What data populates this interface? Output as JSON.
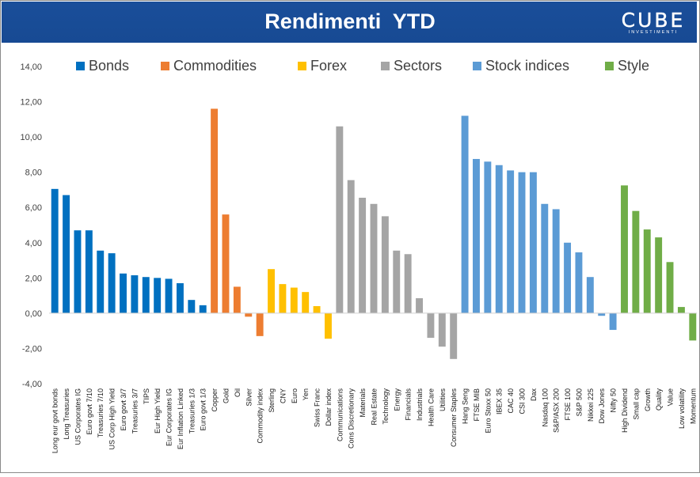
{
  "header": {
    "title": "Rendimenti  YTD",
    "logo_text": "CUBE",
    "logo_subtext": "INVESTIMENTI"
  },
  "chart_data": {
    "type": "bar",
    "title": "",
    "xlabel": "",
    "ylabel": "",
    "ylim": [
      -4,
      14
    ],
    "yticks": [
      "-4,00",
      "-2,00",
      "0,00",
      "2,00",
      "4,00",
      "6,00",
      "8,00",
      "10,00",
      "12,00",
      "14,00"
    ],
    "grid": false,
    "legend_position": "top",
    "groups": [
      {
        "name": "Bonds",
        "color": "#0070c0",
        "categories": [
          "Long eur govt bonds",
          "Long Treasuries",
          "US Corporates IG",
          "Euro govt 7/10",
          "Treasuries 7/10",
          "US Corp High Yield",
          "Euro govt 3/7",
          "Treasuries 3/7",
          "TIPS",
          "Eur High Yield",
          "Eur Corporates IG",
          "Eur Inflation Linked",
          "Treasuries 1/3",
          "Euro govt 1/3"
        ],
        "values": [
          7.05,
          6.7,
          4.7,
          4.7,
          3.55,
          3.4,
          2.25,
          2.15,
          2.05,
          2.0,
          1.95,
          1.7,
          0.75,
          0.45
        ]
      },
      {
        "name": "Commodities",
        "color": "#ed7d31",
        "categories": [
          "Copper",
          "Gold",
          "Oil",
          "Silver",
          "Commodity index"
        ],
        "values": [
          11.6,
          5.6,
          1.5,
          -0.2,
          -1.3
        ]
      },
      {
        "name": "Forex",
        "color": "#ffc000",
        "categories": [
          "Sterling",
          "CNY",
          "Euro",
          "Yen",
          "Swiss Franc",
          "Dollar index"
        ],
        "values": [
          2.5,
          1.65,
          1.45,
          1.2,
          0.4,
          -1.45
        ]
      },
      {
        "name": "Sectors",
        "color": "#a5a5a5",
        "categories": [
          "Communications",
          "Cons Discretionary",
          "Materials",
          "Real Estate",
          "Technology",
          "Energy",
          "Financials",
          "Industrials",
          "Health Care",
          "Utilities",
          "Consumer Staples"
        ],
        "values": [
          10.6,
          7.55,
          6.55,
          6.2,
          5.5,
          3.55,
          3.35,
          0.85,
          -1.4,
          -1.9,
          -2.6
        ]
      },
      {
        "name": "Stock indices",
        "color": "#5b9bd5",
        "categories": [
          "Hang Seng",
          "FTSE MIB",
          "Euro Stoxx 50",
          "IBEX 35",
          "CAC 40",
          "CSI 300",
          "Dax",
          "Nasdaq 100",
          "S&P/ASX 200",
          "FTSE 100",
          "S&P 500",
          "Nikkei 225",
          "Dow Jones",
          "Nifty 50"
        ],
        "values": [
          11.2,
          8.75,
          8.6,
          8.4,
          8.1,
          8.0,
          8.0,
          6.2,
          5.9,
          4.0,
          3.45,
          2.05,
          -0.15,
          -0.95
        ]
      },
      {
        "name": "Style",
        "color": "#70ad47",
        "categories": [
          "High Dividend",
          "Small cap",
          "Growth",
          "Quality",
          "Value",
          "Low volatility",
          "Momentum"
        ],
        "values": [
          7.25,
          5.8,
          4.75,
          4.3,
          2.9,
          0.35,
          -1.55
        ]
      }
    ]
  }
}
